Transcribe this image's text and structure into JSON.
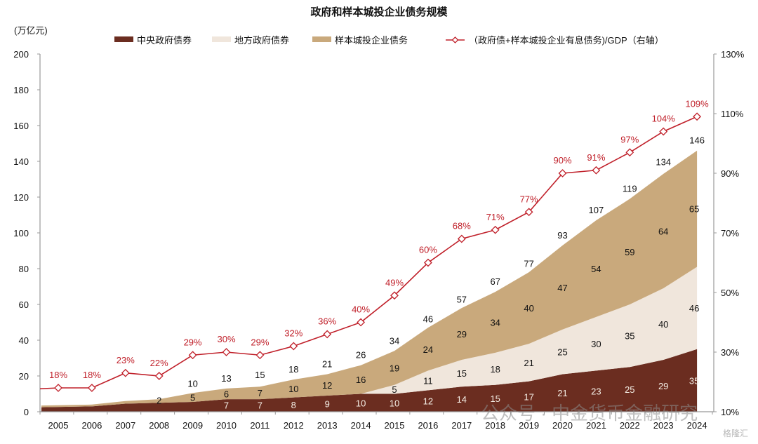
{
  "chart_data": {
    "type": "area",
    "title": "政府和样本城投企业债务规模",
    "ylabel": "(万亿元)",
    "y2label": "",
    "ylim": [
      0,
      200
    ],
    "yticks": [
      0,
      20,
      40,
      60,
      80,
      100,
      120,
      140,
      160,
      180,
      200
    ],
    "y2lim": [
      10,
      130
    ],
    "y2ticks": [
      "10%",
      "30%",
      "50%",
      "70%",
      "90%",
      "110%",
      "130%"
    ],
    "y2tick_values": [
      10,
      30,
      50,
      70,
      90,
      110,
      130
    ],
    "categories": [
      "2005",
      "2006",
      "2007",
      "2008",
      "2009",
      "2010",
      "2011",
      "2012",
      "2013",
      "2014",
      "2015",
      "2016",
      "2017",
      "2018",
      "2019",
      "2020",
      "2021",
      "2022",
      "2023",
      "2024"
    ],
    "stacked": true,
    "series": [
      {
        "name": "中央政府债券",
        "color": "#6b2d20",
        "values": [
          2.5,
          3,
          4.5,
          5,
          5.5,
          7,
          7,
          8,
          9,
          10,
          10,
          12,
          14,
          15,
          17,
          21,
          23,
          25,
          29,
          35
        ],
        "labels": [
          null,
          null,
          null,
          null,
          null,
          "7",
          "7",
          "8",
          "9",
          "10",
          "10",
          "12",
          "14",
          "15",
          "17",
          "21",
          "23",
          "25",
          "29",
          "35"
        ]
      },
      {
        "name": "地方政府债券",
        "color": "#f0e6dc",
        "values": [
          0,
          0,
          0,
          0,
          0,
          0,
          0,
          0,
          0,
          0,
          5,
          11,
          15,
          18,
          21,
          25,
          30,
          35,
          40,
          46
        ],
        "labels": [
          null,
          null,
          null,
          null,
          null,
          null,
          null,
          null,
          null,
          null,
          "5",
          "11",
          "15",
          "18",
          "21",
          "25",
          "30",
          "35",
          "40",
          "46"
        ]
      },
      {
        "name": "样本城投企业债务",
        "color": "#c9a97c",
        "values": [
          1,
          1,
          1.5,
          2,
          5,
          6,
          7,
          10,
          12,
          16,
          19,
          24,
          29,
          34,
          40,
          47,
          54,
          59,
          64,
          65
        ],
        "labels": [
          null,
          null,
          null,
          "2",
          "5",
          "6",
          "7",
          "10",
          "12",
          "16",
          "19",
          "24",
          "29",
          "34",
          "40",
          "47",
          "54",
          "59",
          "64",
          "65"
        ]
      }
    ],
    "totals": {
      "values": [
        null,
        null,
        null,
        null,
        10,
        13,
        15,
        18,
        21,
        26,
        34,
        46,
        57,
        67,
        77,
        93,
        107,
        119,
        134,
        146
      ],
      "labels": [
        null,
        null,
        null,
        null,
        "10",
        "13",
        "15",
        "18",
        "21",
        "26",
        "34",
        "46",
        "57",
        "67",
        "77",
        "93",
        "107",
        "119",
        "134",
        "146"
      ]
    },
    "line_series": {
      "name": "（政府债+样本城投企业有息债务)/GDP（右轴）",
      "color": "#c0202a",
      "axis": "right",
      "values": [
        18,
        18,
        23,
        22,
        29,
        30,
        29,
        32,
        36,
        40,
        49,
        60,
        68,
        71,
        77,
        90,
        91,
        97,
        104,
        109
      ],
      "labels": [
        "18%",
        "18%",
        "23%",
        "22%",
        "29%",
        "30%",
        "29%",
        "32%",
        "36%",
        "40%",
        "49%",
        "60%",
        "68%",
        "71%",
        "77%",
        "90%",
        "91%",
        "97%",
        "104%",
        "109%"
      ]
    },
    "legend_position": "top",
    "grid": false
  },
  "watermarks": {
    "main": "公众号 · 中金货币金融研究",
    "corner": "格隆汇"
  }
}
